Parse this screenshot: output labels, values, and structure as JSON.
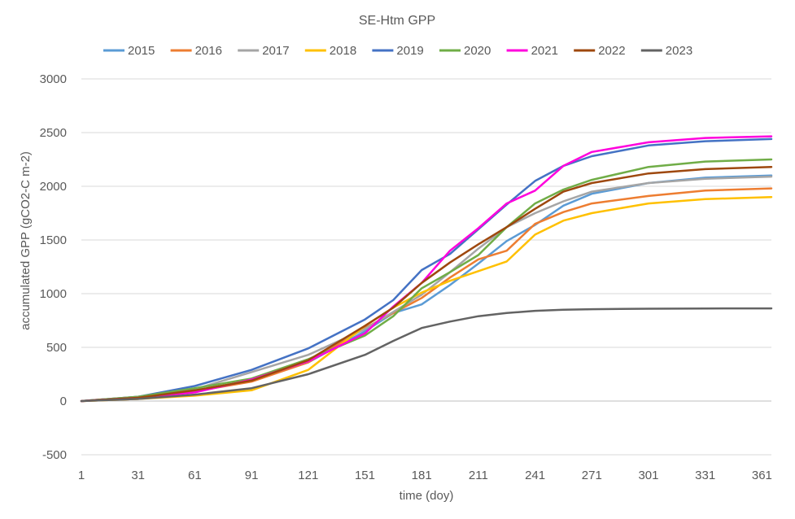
{
  "chart_data": {
    "type": "line",
    "title": "SE-Htm GPP",
    "xlabel": "time (doy)",
    "ylabel": "accumulated GPP (gCO2-C m-2)",
    "xlim": [
      1,
      366
    ],
    "ylim": [
      -500,
      3000
    ],
    "x_ticks": [
      1,
      31,
      61,
      91,
      121,
      151,
      181,
      211,
      241,
      271,
      301,
      331,
      361
    ],
    "y_ticks": [
      -500,
      0,
      500,
      1000,
      1500,
      2000,
      2500,
      3000
    ],
    "grid": true,
    "legend_position": "top",
    "x": [
      1,
      31,
      61,
      91,
      121,
      151,
      166,
      181,
      196,
      211,
      226,
      241,
      256,
      271,
      301,
      331,
      366
    ],
    "series": [
      {
        "name": "2015",
        "color": "#5B9BD5",
        "values": [
          0,
          30,
          95,
          190,
          360,
          650,
          820,
          900,
          1080,
          1280,
          1490,
          1640,
          1820,
          1930,
          2030,
          2080,
          2100
        ]
      },
      {
        "name": "2016",
        "color": "#ED7D31",
        "values": [
          0,
          20,
          90,
          180,
          360,
          680,
          820,
          960,
          1150,
          1320,
          1400,
          1650,
          1760,
          1840,
          1910,
          1960,
          1980
        ]
      },
      {
        "name": "2017",
        "color": "#A5A5A5",
        "values": [
          0,
          40,
          110,
          270,
          430,
          670,
          830,
          990,
          1200,
          1420,
          1620,
          1750,
          1860,
          1950,
          2030,
          2070,
          2090
        ]
      },
      {
        "name": "2018",
        "color": "#FFC000",
        "values": [
          0,
          20,
          50,
          100,
          290,
          700,
          870,
          1010,
          1120,
          1210,
          1300,
          1550,
          1680,
          1750,
          1840,
          1880,
          1900
        ]
      },
      {
        "name": "2019",
        "color": "#4472C4",
        "values": [
          0,
          40,
          140,
          290,
          490,
          760,
          940,
          1220,
          1370,
          1600,
          1830,
          2050,
          2190,
          2280,
          2380,
          2420,
          2440
        ]
      },
      {
        "name": "2020",
        "color": "#70AD47",
        "values": [
          0,
          40,
          120,
          210,
          390,
          610,
          790,
          1050,
          1200,
          1360,
          1620,
          1840,
          1970,
          2060,
          2180,
          2230,
          2250
        ]
      },
      {
        "name": "2021",
        "color": "#FF00DD",
        "values": [
          0,
          30,
          80,
          200,
          370,
          630,
          880,
          1100,
          1400,
          1610,
          1840,
          1960,
          2190,
          2320,
          2410,
          2450,
          2465
        ]
      },
      {
        "name": "2022",
        "color": "#9E480E",
        "values": [
          0,
          30,
          100,
          190,
          380,
          700,
          870,
          1100,
          1290,
          1460,
          1620,
          1790,
          1950,
          2030,
          2120,
          2160,
          2180
        ]
      },
      {
        "name": "2023",
        "color": "#636363",
        "values": [
          0,
          20,
          60,
          120,
          250,
          430,
          560,
          680,
          740,
          790,
          820,
          840,
          850,
          855,
          860,
          862,
          863
        ]
      }
    ]
  }
}
